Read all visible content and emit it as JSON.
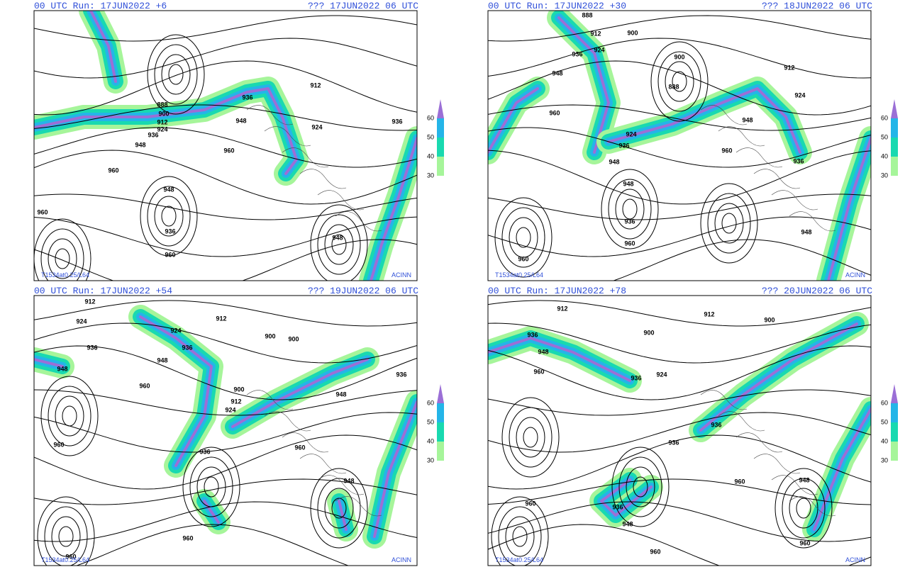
{
  "panels": [
    {
      "header_left": "00 UTC Run: 17JUN2022 +6",
      "header_right": "??? 17JUN2022 06 UTC",
      "footer_left": "T1534at0.25/L64",
      "footer_right": "ACINN",
      "contour_labels": [
        "912",
        "936",
        "888",
        "900",
        "912",
        "924",
        "936",
        "948",
        "948",
        "924",
        "936",
        "960",
        "960",
        "948",
        "936",
        "960",
        "960",
        "948"
      ]
    },
    {
      "header_left": "00 UTC Run: 17JUN2022 +30",
      "header_right": "??? 18JUN2022 06 UTC",
      "footer_left": "T1534at0.25/L64",
      "footer_right": "ACINN",
      "contour_labels": [
        "888",
        "912",
        "900",
        "924",
        "936",
        "948",
        "900",
        "888",
        "912",
        "924",
        "960",
        "924",
        "936",
        "948",
        "948",
        "960",
        "936",
        "948",
        "936",
        "960",
        "960",
        "948"
      ]
    },
    {
      "header_left": "00 UTC Run: 17JUN2022 +54",
      "header_right": "??? 19JUN2022 06 UTC",
      "footer_left": "T1534at0.25/L64",
      "footer_right": "ACINN",
      "contour_labels": [
        "912",
        "924",
        "912",
        "924",
        "936",
        "936",
        "948",
        "948",
        "900",
        "900",
        "960",
        "900",
        "912",
        "924",
        "948",
        "936",
        "960",
        "936",
        "960",
        "948",
        "960",
        "960"
      ]
    },
    {
      "header_left": "00 UTC Run: 17JUN2022 +78",
      "header_right": "??? 20JUN2022 06 UTC",
      "footer_left": "T1534at0.25/L64",
      "footer_right": "ACINN",
      "contour_labels": [
        "912",
        "936",
        "948",
        "960",
        "912",
        "900",
        "900",
        "936",
        "924",
        "936",
        "936",
        "960",
        "936",
        "948",
        "960",
        "960",
        "948",
        "960"
      ]
    }
  ],
  "colorbar_labels": [
    "60",
    "50",
    "40",
    "30"
  ]
}
